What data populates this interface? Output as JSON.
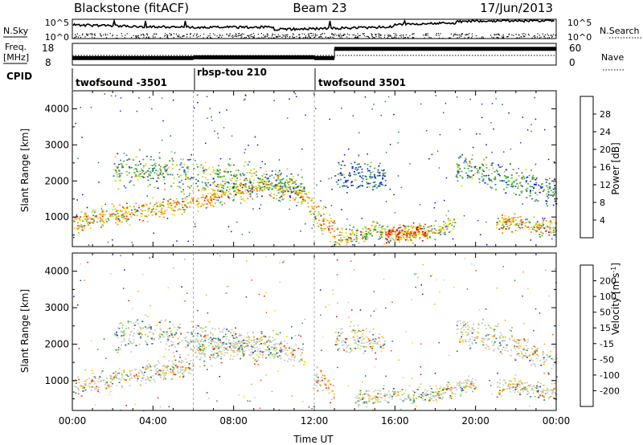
{
  "header": {
    "title": "Blackstone (fitACF)",
    "beam": "Beam 23",
    "date": "17/Jun/2013"
  },
  "noise_panel": {
    "left_label": "N.Sky",
    "right_label": "N.Search",
    "left_ticks": [
      "10^5",
      "10^0"
    ],
    "right_ticks": [
      "10^5",
      "10^0"
    ]
  },
  "freq_panel": {
    "left_label_line1": "Freq.",
    "left_label_line2": "[MHz]",
    "right_label": "Nave",
    "left_ticks": [
      "18",
      "8"
    ],
    "right_ticks": [
      "60",
      "0"
    ],
    "freq_levels": [
      {
        "start_hour": 0,
        "end_hour": 6,
        "mhz": 10.5
      },
      {
        "start_hour": 6,
        "end_hour": 12,
        "mhz": 11.0
      },
      {
        "start_hour": 12,
        "end_hour": 13,
        "mhz": 10.5
      },
      {
        "start_hour": 13,
        "end_hour": 24,
        "mhz": 16.5
      }
    ]
  },
  "cpid_panel": {
    "label": "CPID",
    "segments": [
      {
        "start_hour": 0,
        "end_hour": 6,
        "name": "twofsound -3501"
      },
      {
        "start_hour": 6,
        "end_hour": 12,
        "name": "rbsp-tou 210"
      },
      {
        "start_hour": 12,
        "end_hour": 24,
        "name": "twofsound 3501"
      }
    ]
  },
  "colors": {
    "power": [
      "#0000ff",
      "#224aa8",
      "#2e7d6d",
      "#3aa84a",
      "#a8d23a",
      "#ffd400",
      "#ff8c00",
      "#ff3c00",
      "#dd0000"
    ],
    "velocity": [
      "#dd0000",
      "#ff3c00",
      "#ff9c00",
      "#ffd400",
      "#c8c8c8",
      "#7ddc3a",
      "#2e8b57",
      "#224aa8",
      "#0000ff"
    ],
    "velocity_ground": "#c8c8c8"
  },
  "chart_data": [
    {
      "type": "heatmap",
      "name": "power",
      "xlabel": "",
      "ylabel": "Slant Range [km]",
      "xlim": [
        0,
        24
      ],
      "ylim": [
        180,
        4500
      ],
      "yticks": [
        1000,
        2000,
        3000,
        4000
      ],
      "colorbar": {
        "label": "Power [dB]",
        "ticks": [
          4,
          8,
          12,
          16,
          20,
          24,
          28
        ],
        "range": [
          0,
          32
        ]
      },
      "bands": [
        {
          "hours": [
            0,
            2,
            4,
            6,
            8,
            10,
            11.5,
            12
          ],
          "ranges_km": [
            850,
            1050,
            1250,
            1450,
            1750,
            1900,
            1600,
            1200
          ],
          "width_km": 300,
          "level_db": 20
        },
        {
          "hours": [
            2,
            4,
            6,
            8,
            10,
            11.5
          ],
          "ranges_km": [
            2300,
            2350,
            2150,
            2050,
            2000,
            1850
          ],
          "width_km": 450,
          "level_db": 12
        },
        {
          "hours": [
            12,
            12.5,
            13
          ],
          "ranges_km": [
            1200,
            900,
            600
          ],
          "width_km": 400,
          "level_db": 22
        },
        {
          "hours": [
            13,
            14,
            15.5
          ],
          "ranges_km": [
            2150,
            2150,
            2100
          ],
          "width_km": 400,
          "level_db": 6
        },
        {
          "hours": [
            13,
            14,
            15,
            16,
            17,
            18,
            19
          ],
          "ranges_km": [
            450,
            500,
            650,
            500,
            550,
            650,
            900
          ],
          "width_km": 250,
          "level_db": 16
        },
        {
          "hours": [
            15.5,
            16.5,
            17.5
          ],
          "ranges_km": [
            500,
            600,
            600
          ],
          "width_km": 200,
          "level_db": 28
        },
        {
          "hours": [
            19,
            20,
            21,
            22,
            23,
            24
          ],
          "ranges_km": [
            2350,
            2300,
            2200,
            2000,
            1800,
            1700
          ],
          "width_km": 450,
          "level_db": 10
        },
        {
          "hours": [
            21,
            22,
            23,
            24
          ],
          "ranges_km": [
            800,
            900,
            750,
            700
          ],
          "width_km": 250,
          "level_db": 20
        }
      ]
    },
    {
      "type": "heatmap",
      "name": "velocity",
      "xlabel": "Time UT",
      "ylabel": "Slant Range [km]",
      "xlim": [
        0,
        24
      ],
      "ylim": [
        180,
        4500
      ],
      "xticks": [
        "00:00",
        "04:00",
        "08:00",
        "12:00",
        "16:00",
        "20:00",
        "00:00"
      ],
      "yticks": [
        1000,
        2000,
        3000,
        4000
      ],
      "colorbar": {
        "label": "Velocity [m s^-1]",
        "ticks": [
          200,
          100,
          50,
          15,
          -15,
          -50,
          -100,
          -200
        ]
      },
      "bands": [
        {
          "hours": [
            0,
            2,
            4,
            6
          ],
          "ranges_km": [
            850,
            1050,
            1250,
            1450
          ],
          "width_km": 300,
          "vel_ms": -15
        },
        {
          "hours": [
            6,
            8,
            10,
            11.5
          ],
          "ranges_km": [
            1800,
            1950,
            1900,
            1700
          ],
          "width_km": 350,
          "vel_ms": 0
        },
        {
          "hours": [
            2,
            4,
            6,
            8,
            10
          ],
          "ranges_km": [
            2300,
            2350,
            2150,
            2050,
            2000
          ],
          "width_km": 450,
          "vel_ms": 40
        },
        {
          "hours": [
            12,
            12.5,
            13
          ],
          "ranges_km": [
            1200,
            900,
            600
          ],
          "width_km": 400,
          "vel_ms": -80
        },
        {
          "hours": [
            13,
            14,
            15.5
          ],
          "ranges_km": [
            2150,
            2150,
            2100
          ],
          "width_km": 400,
          "vel_ms": 0
        },
        {
          "hours": [
            14,
            15,
            16,
            17,
            18,
            19,
            20
          ],
          "ranges_km": [
            500,
            550,
            650,
            550,
            650,
            800,
            900
          ],
          "width_km": 250,
          "vel_ms": 0
        },
        {
          "hours": [
            19,
            20,
            21,
            22,
            23,
            24
          ],
          "ranges_km": [
            2350,
            2300,
            2150,
            1950,
            1700,
            1550
          ],
          "width_km": 450,
          "vel_ms": 0
        },
        {
          "hours": [
            21,
            22,
            23,
            24
          ],
          "ranges_km": [
            800,
            900,
            750,
            700
          ],
          "width_km": 250,
          "vel_ms": 0
        }
      ]
    }
  ]
}
